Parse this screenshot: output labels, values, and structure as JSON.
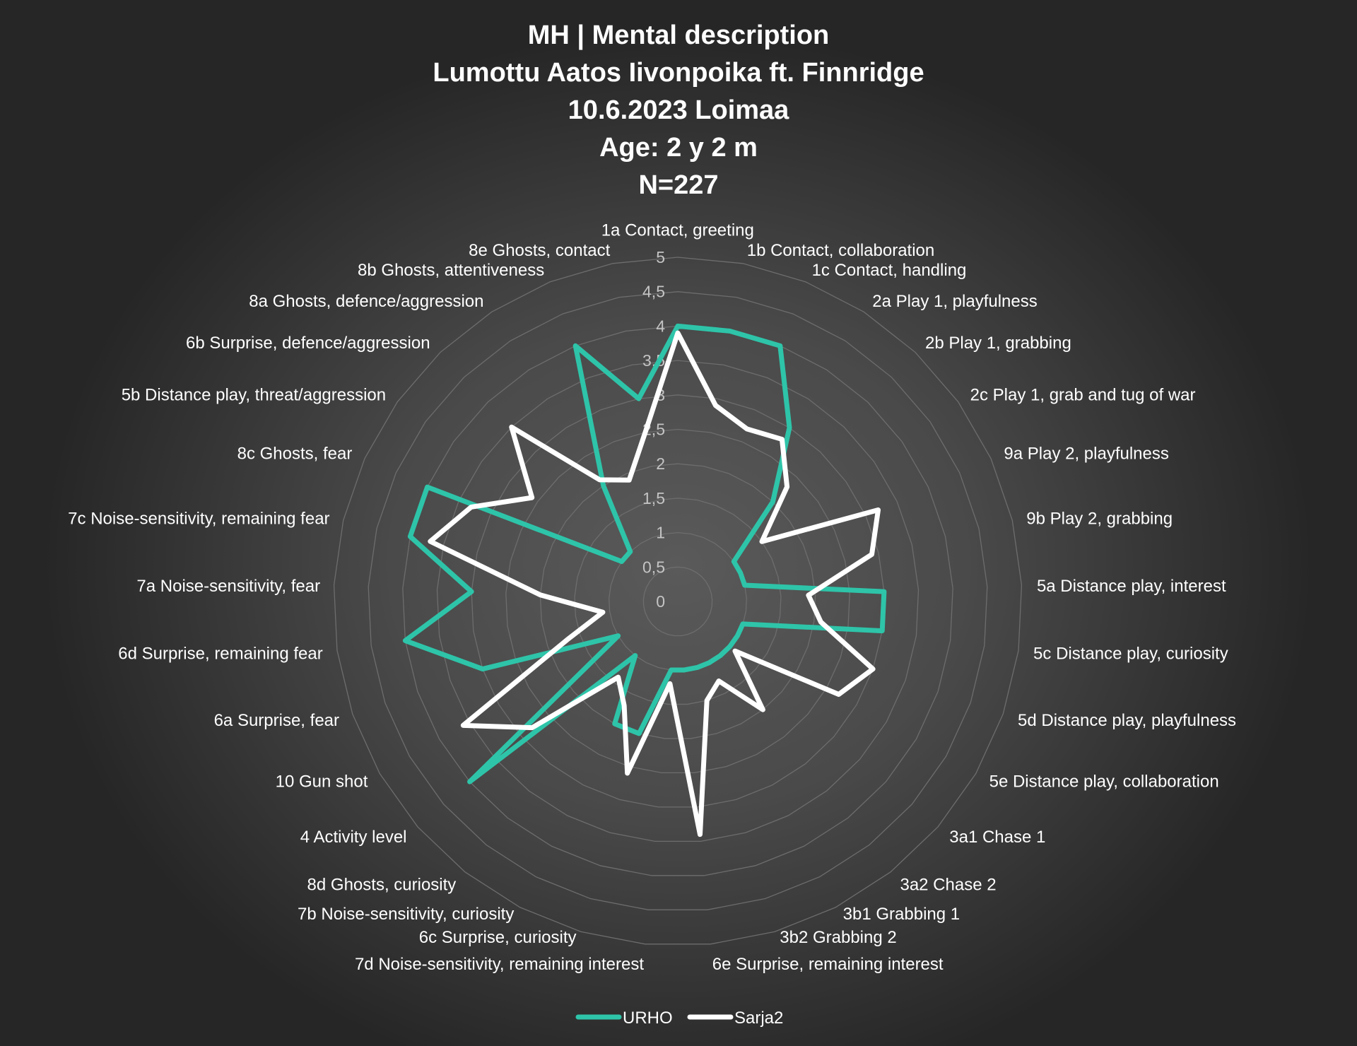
{
  "chart_data": {
    "type": "radar",
    "title_lines": [
      "MH | Mental description",
      "Lumottu Aatos Iivonpoika ft. Finnridge",
      "10.6.2023 Loimaa",
      "Age: 2 y 2 m",
      "N=227"
    ],
    "categories": [
      "1a Contact, greeting",
      "1b Contact, collaboration",
      "1c Contact, handling",
      "2a Play 1, playfulness",
      "2b Play 1, grabbing",
      "2c Play 1, grab and tug of war",
      "9a Play 2, playfulness",
      "9b Play 2, grabbing",
      "5a Distance play, interest",
      "5c Distance play, curiosity",
      "5d Distance play, playfulness",
      "5e Distance play, collaboration",
      "3a1 Chase 1",
      "3a2 Chase 2",
      "3b1 Grabbing 1",
      "3b2 Grabbing 2",
      "6e Surprise, remaining interest",
      "7d Noise-sensitivity, remaining interest",
      "6c Surprise, curiosity",
      "7b Noise-sensitivity, curiosity",
      "8d Ghosts, curiosity",
      "4 Activity level",
      "10 Gun shot",
      "6a Surprise, fear",
      "6d Surprise, remaining fear",
      "7a Noise-sensitivity, fear",
      "7c Noise-sensitivity, remaining fear",
      "8c Ghosts, fear",
      "5b Distance play, threat/aggression",
      "6b Surprise, defence/aggression",
      "8a Ghosts, defence/aggression",
      "8b Ghosts, attentiveness",
      "8e Ghosts, contact"
    ],
    "series": [
      {
        "name": "URHO",
        "color": "#2ec4a9",
        "values": [
          4,
          4,
          4,
          3,
          2,
          1,
          1,
          1,
          3,
          3,
          1,
          1,
          1,
          1,
          1,
          1,
          1,
          1,
          2,
          2,
          1,
          4,
          1,
          3,
          4,
          3,
          4,
          4,
          1,
          1,
          2,
          4,
          3
        ]
      },
      {
        "name": "Sarja2",
        "color": "#ffffff",
        "values": [
          3.9,
          2.9,
          2.7,
          2.8,
          2.3,
          1.5,
          3.2,
          2.9,
          1.9,
          2.1,
          3.0,
          2.7,
          1.1,
          2.0,
          1.3,
          1.5,
          3.4,
          1.2,
          2.6,
          1.7,
          1.4,
          2.8,
          3.6,
          1.7,
          1.1,
          2.0,
          3.7,
          3.3,
          2.6,
          3.5,
          2.1,
          1.9,
          2.5
        ]
      }
    ],
    "rlim": [
      0,
      5
    ],
    "tick_labels": [
      "0",
      "0,5",
      "1",
      "1,5",
      "2",
      "2,5",
      "3",
      "3,5",
      "4",
      "4,5",
      "5"
    ],
    "grid": true,
    "legend_position": "bottom",
    "background": "#4a4a4a"
  }
}
